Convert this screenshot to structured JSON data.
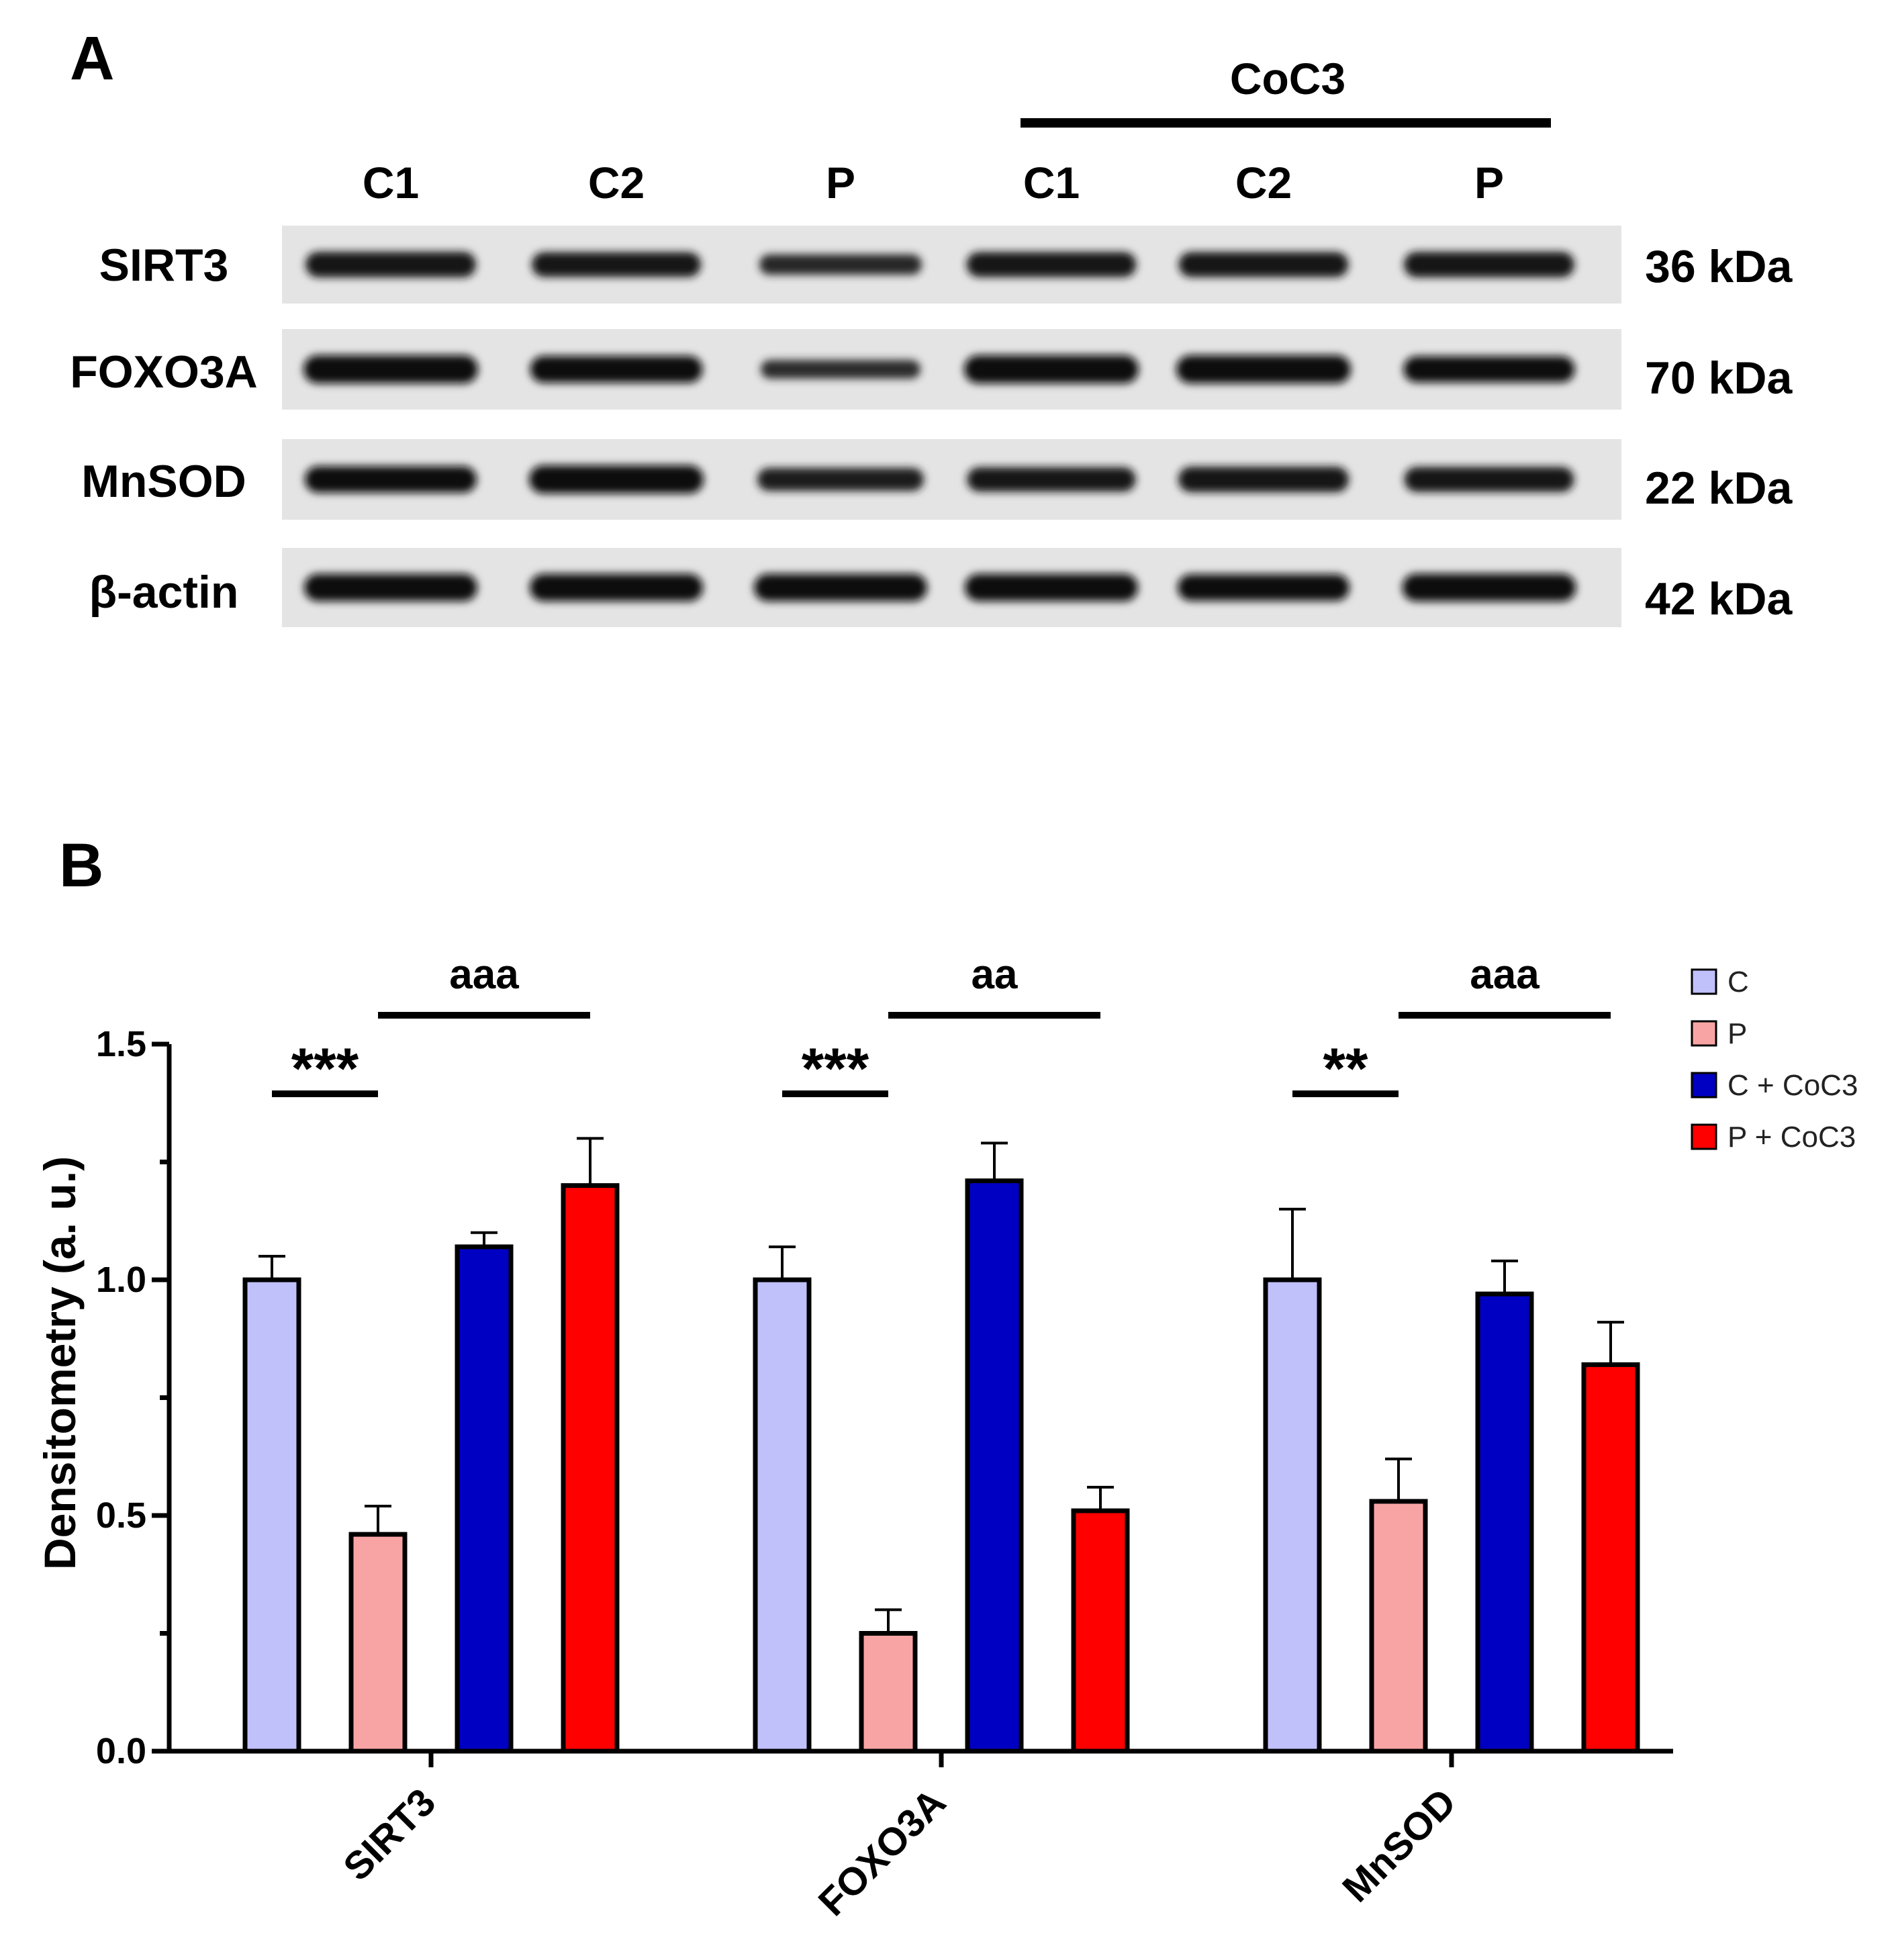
{
  "panelA": {
    "letter": "A",
    "group_label": "CoC3",
    "lanes": [
      "C1",
      "C2",
      "P",
      "C1",
      "C2",
      "P"
    ],
    "blots": [
      {
        "protein": "SIRT3",
        "size": "36 kDa",
        "intensity": [
          0.85,
          0.8,
          0.55,
          0.82,
          0.82,
          0.85
        ]
      },
      {
        "protein": "FOXO3A",
        "size": "70 kDa",
        "intensity": [
          1.0,
          0.92,
          0.45,
          1.0,
          1.0,
          0.88
        ]
      },
      {
        "protein": "MnSOD",
        "size": "22 kDa",
        "intensity": [
          0.9,
          1.0,
          0.7,
          0.78,
          0.85,
          0.82
        ]
      },
      {
        "protein": "β-actin",
        "size": "42 kDa",
        "intensity": [
          0.95,
          0.95,
          0.95,
          0.95,
          0.9,
          0.97
        ]
      }
    ]
  },
  "panelB": {
    "letter": "B",
    "colors": {
      "C": "#c0c0fb",
      "P": "#f9a4a4",
      "C + CoC3": "#0000c2",
      "P + CoC3": "#ff0000",
      "axis": "#000000"
    }
  },
  "chart_data": {
    "type": "bar",
    "title": "",
    "xlabel": "",
    "ylabel": "Densitometry (a. u.)",
    "ylim": [
      0,
      1.5
    ],
    "yticks": [
      "0.0",
      "0.5",
      "1.0",
      "1.5"
    ],
    "minor_yticks": [
      0.25,
      0.75,
      1.25
    ],
    "categories": [
      "SIRT3",
      "FOXO3A",
      "MnSOD"
    ],
    "series": [
      {
        "name": "C",
        "values": [
          1.0,
          1.0,
          1.0
        ],
        "errors": [
          0.05,
          0.07,
          0.15
        ]
      },
      {
        "name": "P",
        "values": [
          0.46,
          0.25,
          0.53
        ],
        "errors": [
          0.06,
          0.05,
          0.09
        ]
      },
      {
        "name": "C + CoC3",
        "values": [
          1.07,
          1.21,
          0.97
        ],
        "errors": [
          0.03,
          0.08,
          0.07
        ]
      },
      {
        "name": "P + CoC3",
        "values": [
          1.2,
          0.51,
          0.82
        ],
        "errors": [
          0.1,
          0.05,
          0.09
        ]
      }
    ],
    "legend_position": "top-right",
    "annotations": [
      {
        "category": "SIRT3",
        "text": "***",
        "from_series": "C",
        "to_series": "P"
      },
      {
        "category": "SIRT3",
        "text": "aaa",
        "from_series": "P",
        "to_series": "P + CoC3"
      },
      {
        "category": "FOXO3A",
        "text": "***",
        "from_series": "C",
        "to_series": "P"
      },
      {
        "category": "FOXO3A",
        "text": "aa",
        "from_series": "P",
        "to_series": "P + CoC3"
      },
      {
        "category": "MnSOD",
        "text": "**",
        "from_series": "C",
        "to_series": "P"
      },
      {
        "category": "MnSOD",
        "text": "aaa",
        "from_series": "P",
        "to_series": "P + CoC3"
      }
    ]
  }
}
